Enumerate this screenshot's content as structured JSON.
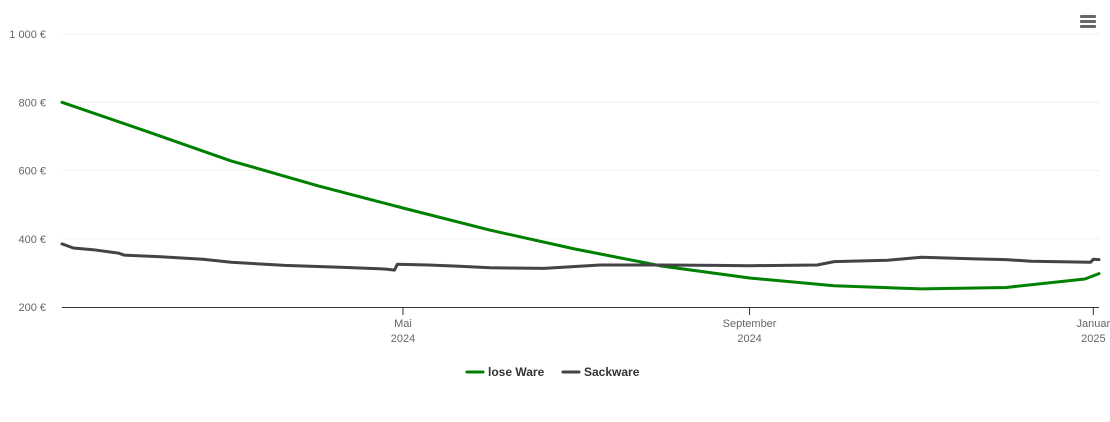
{
  "menu": {
    "icon": "hamburger-menu-icon"
  },
  "chart_data": {
    "type": "line",
    "y_unit": "€",
    "ylim": [
      200,
      1000
    ],
    "y_ticks": [
      {
        "value": 200,
        "label": "200 €"
      },
      {
        "value": 400,
        "label": "400 €"
      },
      {
        "value": 600,
        "label": "600 €"
      },
      {
        "value": 800,
        "label": "800 €"
      },
      {
        "value": 1000,
        "label": "1 000 €"
      }
    ],
    "xlim": [
      "2024-01-01",
      "2025-01-03"
    ],
    "x_ticks": [
      {
        "date": "2024-05-01",
        "month": "Mai",
        "year": "2024"
      },
      {
        "date": "2024-09-01",
        "month": "September",
        "year": "2024"
      },
      {
        "date": "2025-01-01",
        "month": "Januar",
        "year": "2025"
      }
    ],
    "grid": true,
    "legend_position": "bottom-center",
    "series": [
      {
        "name": "lose Ware",
        "color": "#008000",
        "points": [
          [
            "2024-01-01",
            800
          ],
          [
            "2024-02-01",
            712
          ],
          [
            "2024-03-01",
            628
          ],
          [
            "2024-04-01",
            555
          ],
          [
            "2024-05-01",
            490
          ],
          [
            "2024-06-01",
            425
          ],
          [
            "2024-07-01",
            370
          ],
          [
            "2024-08-01",
            320
          ],
          [
            "2024-09-01",
            285
          ],
          [
            "2024-10-01",
            262
          ],
          [
            "2024-11-01",
            253
          ],
          [
            "2024-12-01",
            257
          ],
          [
            "2024-12-29",
            282
          ],
          [
            "2025-01-03",
            298
          ]
        ]
      },
      {
        "name": "Sackware",
        "color": "#434348",
        "points": [
          [
            "2024-01-01",
            385
          ],
          [
            "2024-01-05",
            373
          ],
          [
            "2024-01-12",
            368
          ],
          [
            "2024-01-21",
            358
          ],
          [
            "2024-01-23",
            352
          ],
          [
            "2024-02-05",
            347
          ],
          [
            "2024-02-20",
            340
          ],
          [
            "2024-03-01",
            331
          ],
          [
            "2024-03-20",
            322
          ],
          [
            "2024-04-10",
            316
          ],
          [
            "2024-04-25",
            311
          ],
          [
            "2024-04-28",
            308
          ],
          [
            "2024-04-29",
            325
          ],
          [
            "2024-05-10",
            323
          ],
          [
            "2024-05-20",
            320
          ],
          [
            "2024-06-01",
            315
          ],
          [
            "2024-06-20",
            313
          ],
          [
            "2024-07-10",
            323
          ],
          [
            "2024-08-01",
            323
          ],
          [
            "2024-08-20",
            322
          ],
          [
            "2024-09-01",
            321
          ],
          [
            "2024-09-25",
            323
          ],
          [
            "2024-10-01",
            333
          ],
          [
            "2024-10-20",
            337
          ],
          [
            "2024-11-01",
            346
          ],
          [
            "2024-11-20",
            341
          ],
          [
            "2024-12-01",
            339
          ],
          [
            "2024-12-10",
            334
          ],
          [
            "2024-12-31",
            331
          ],
          [
            "2025-01-01",
            340
          ],
          [
            "2025-01-03",
            339
          ]
        ]
      }
    ]
  }
}
